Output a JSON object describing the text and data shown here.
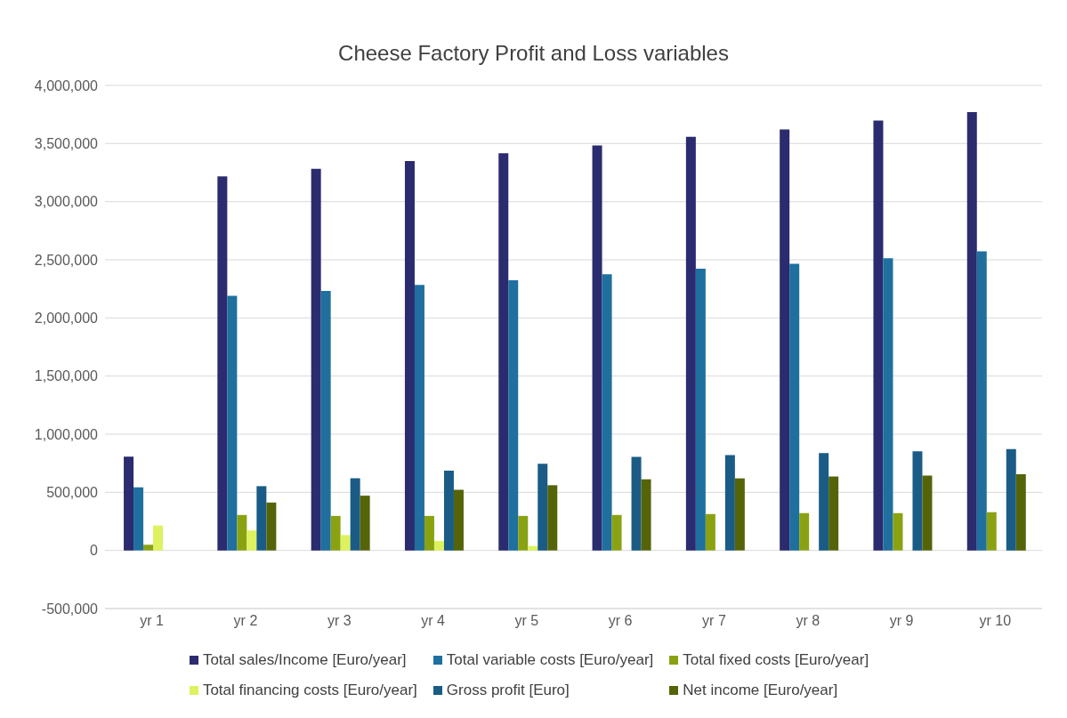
{
  "chart_data": {
    "type": "bar",
    "title": "Cheese Factory Profit and Loss variables",
    "categories": [
      "yr 1",
      "yr 2",
      "yr 3",
      "yr 4",
      "yr 5",
      "yr 6",
      "yr 7",
      "yr 8",
      "yr 9",
      "yr 10"
    ],
    "series": [
      {
        "name": "Total sales/Income [Euro/year]",
        "color": "#2b2b6f",
        "values": [
          807000,
          3218000,
          3282000,
          3349000,
          3417000,
          3483000,
          3558000,
          3622000,
          3697000,
          3771000
        ]
      },
      {
        "name": "Total variable costs [Euro/year]",
        "color": "#1f6f9f",
        "values": [
          543000,
          2191000,
          2233000,
          2284000,
          2324000,
          2375000,
          2423000,
          2465000,
          2513000,
          2572000
        ]
      },
      {
        "name": "Total fixed costs [Euro/year]",
        "color": "#8aa212",
        "values": [
          49000,
          305000,
          297000,
          297000,
          297000,
          305000,
          313000,
          321000,
          321000,
          329000
        ]
      },
      {
        "name": "Total financing costs [Euro/year]",
        "color": "#ddf25e",
        "values": [
          214000,
          172000,
          132000,
          81000,
          38000,
          0,
          0,
          0,
          0,
          0
        ]
      },
      {
        "name": "Gross profit [Euro]",
        "color": "#1a5c85",
        "values": [
          0,
          553000,
          621000,
          687000,
          745000,
          804000,
          820000,
          837000,
          852000,
          871000
        ]
      },
      {
        "name": "Net income [Euro/year]",
        "color": "#556409",
        "values": [
          0,
          412000,
          471000,
          521000,
          561000,
          612000,
          620000,
          636000,
          644000,
          655000
        ]
      }
    ],
    "ylim": [
      -500000,
      4000000
    ],
    "yticks": [
      {
        "value": -500000,
        "label": "-500,000"
      },
      0,
      {
        "value": 500000,
        "label": "500,000"
      },
      {
        "value": 1000000,
        "label": "1,000,000"
      },
      {
        "value": 1500000,
        "label": "1,500,000"
      },
      {
        "value": 2000000,
        "label": "2,000,000"
      },
      {
        "value": 2500000,
        "label": "2,500,000"
      },
      {
        "value": 3000000,
        "label": "3,000,000"
      },
      {
        "value": 3500000,
        "label": "3,500,000"
      },
      {
        "value": 4000000,
        "label": "4,000,000"
      }
    ],
    "grid": "y",
    "legend": "bottom"
  }
}
